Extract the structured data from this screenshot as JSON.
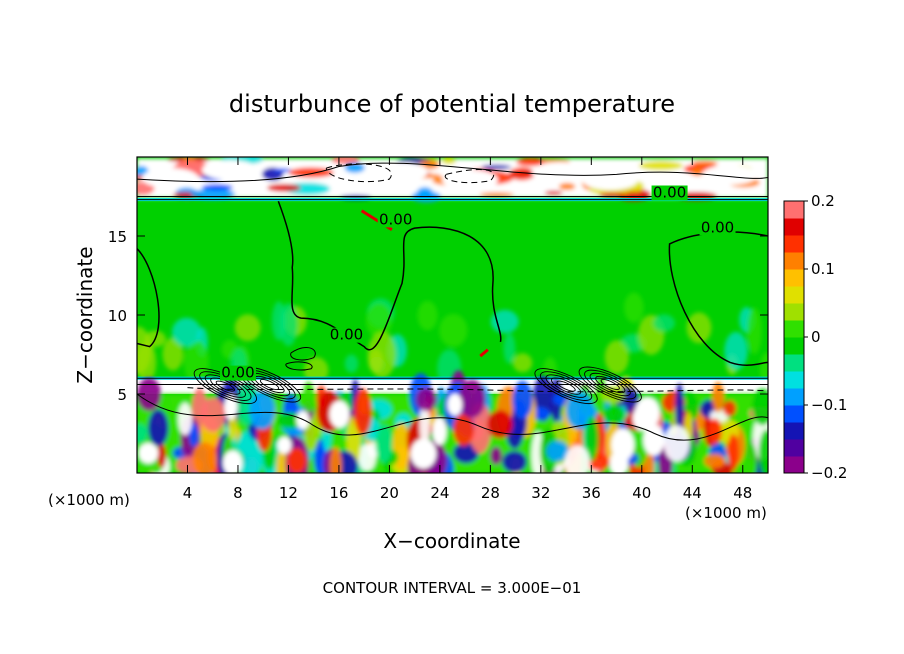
{
  "chart_data": {
    "type": "heatmap",
    "title": "disturbunce of potential temperature",
    "xlabel": "X−coordinate",
    "ylabel": "Z−coordinate",
    "x_unit_label": "(×1000 m)",
    "z_unit_label": "(×1000 m)",
    "xlim": [
      0,
      50
    ],
    "ylim": [
      0,
      20
    ],
    "x_ticks": [
      4,
      8,
      12,
      16,
      20,
      24,
      28,
      32,
      36,
      40,
      44,
      48
    ],
    "y_ticks": [
      5,
      10,
      15
    ],
    "colorbar": {
      "range": [
        -0.2,
        0.2
      ],
      "tick_values": [
        0.2,
        0.1,
        0,
        -0.1,
        -0.2
      ],
      "tick_labels": [
        "0.2",
        "0.1",
        "0",
        "−0.1",
        "−0.2"
      ],
      "colors": [
        "#8b008b",
        "#5000a0",
        "#1414b4",
        "#0050ff",
        "#00a0ff",
        "#00e0e0",
        "#00e080",
        "#00d000",
        "#30e000",
        "#a0e000",
        "#e0e000",
        "#ffc000",
        "#ff8000",
        "#ff3000",
        "#e00000",
        "#ff7070"
      ]
    },
    "contour_labels": [
      {
        "text": "0.00",
        "x": 20.5,
        "z": 15.8
      },
      {
        "text": "0.00",
        "x": 42.2,
        "z": 17.5
      },
      {
        "text": "0.00",
        "x": 46.0,
        "z": 15.3
      },
      {
        "text": "0.00",
        "x": 16.6,
        "z": 8.5
      },
      {
        "text": "0.00",
        "x": 8.0,
        "z": 6.1
      }
    ],
    "footer": "CONTOUR INTERVAL = 3.000E−01"
  }
}
